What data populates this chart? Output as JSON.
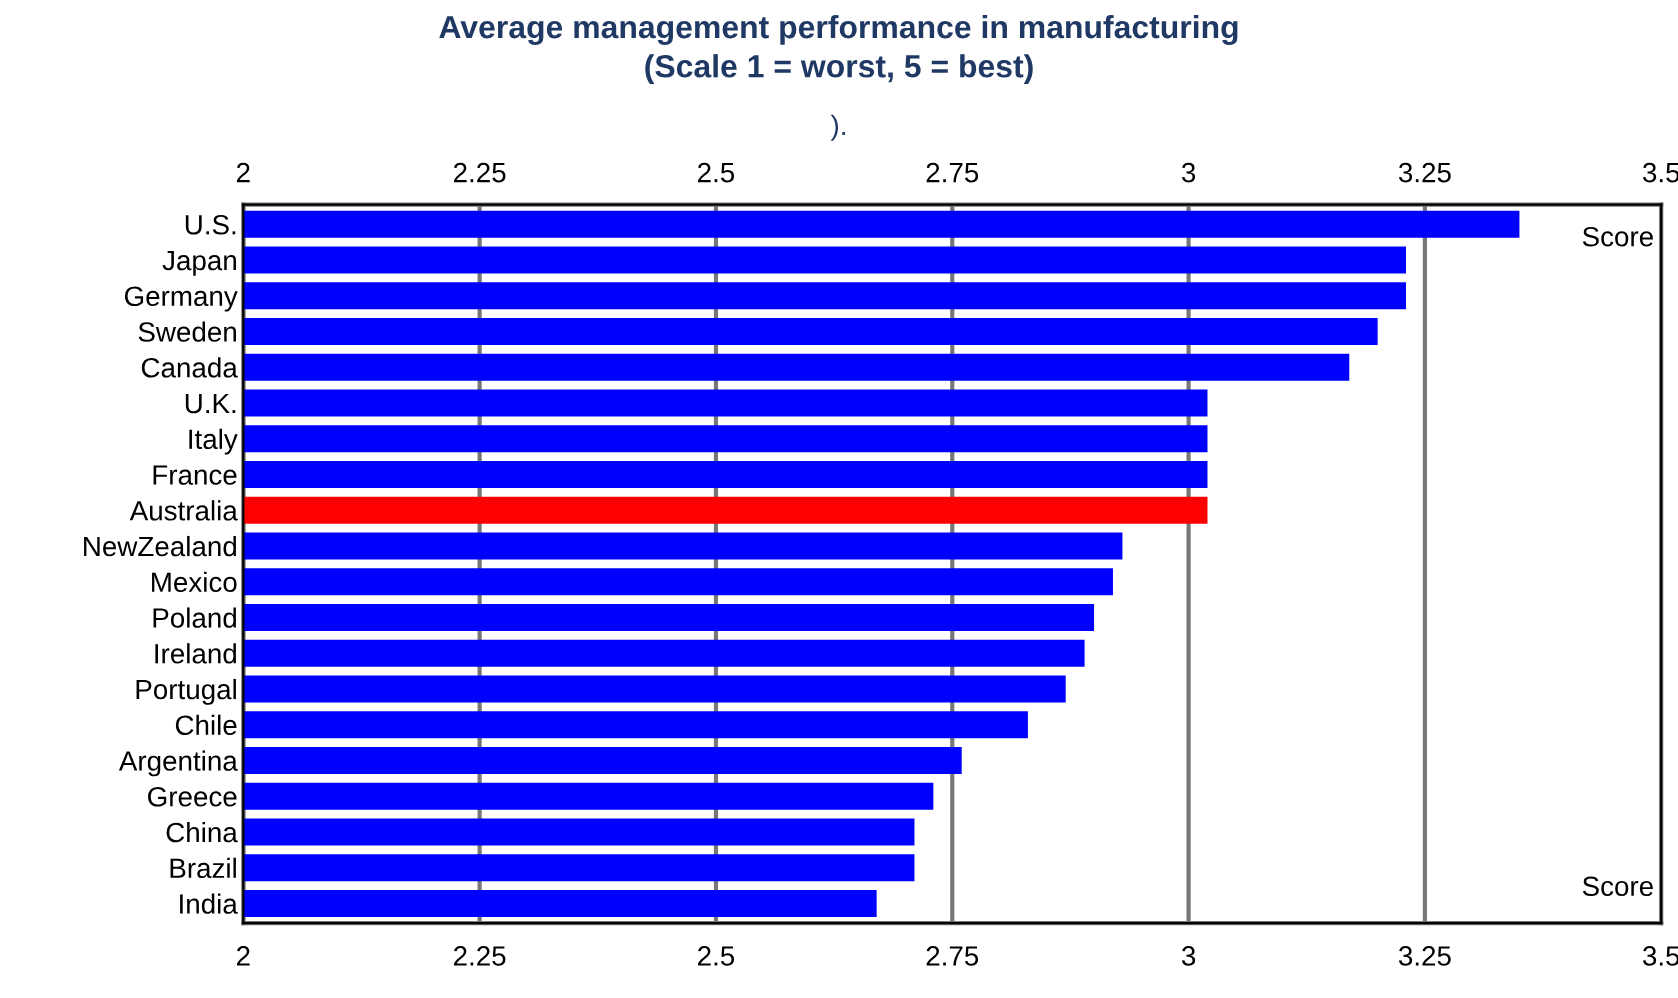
{
  "chart_data": {
    "type": "bar",
    "orientation": "horizontal",
    "title": "Average management performance in manufacturing\n(Scale 1 = worst, 5 = best)",
    "subtitle": ").",
    "categories": [
      "U.S.",
      "Japan",
      "Germany",
      "Sweden",
      "Canada",
      "U.K.",
      "Italy",
      "France",
      "Australia",
      "NewZealand",
      "Mexico",
      "Poland",
      "Ireland",
      "Portugal",
      "Chile",
      "Argentina",
      "Greece",
      "China",
      "Brazil",
      "India"
    ],
    "values": [
      3.35,
      3.23,
      3.23,
      3.2,
      3.17,
      3.02,
      3.02,
      3.02,
      3.02,
      2.93,
      2.92,
      2.9,
      2.89,
      2.87,
      2.83,
      2.76,
      2.73,
      2.71,
      2.71,
      2.67
    ],
    "colors": [
      "#0000ff",
      "#0000ff",
      "#0000ff",
      "#0000ff",
      "#0000ff",
      "#0000ff",
      "#0000ff",
      "#0000ff",
      "#ff0000",
      "#0000ff",
      "#0000ff",
      "#0000ff",
      "#0000ff",
      "#0000ff",
      "#0000ff",
      "#0000ff",
      "#0000ff",
      "#0000ff",
      "#0000ff",
      "#0000ff"
    ],
    "xlim": [
      2,
      3.5
    ],
    "xticks": [
      2,
      2.25,
      2.5,
      2.75,
      3,
      3.25,
      3.5
    ],
    "x2lim": [
      2,
      3.5
    ],
    "x2ticks": [
      2,
      2.25,
      2.5,
      2.75,
      3,
      3.25,
      3.5
    ],
    "grid": "x",
    "annotations": [
      "Score",
      "Score"
    ]
  }
}
